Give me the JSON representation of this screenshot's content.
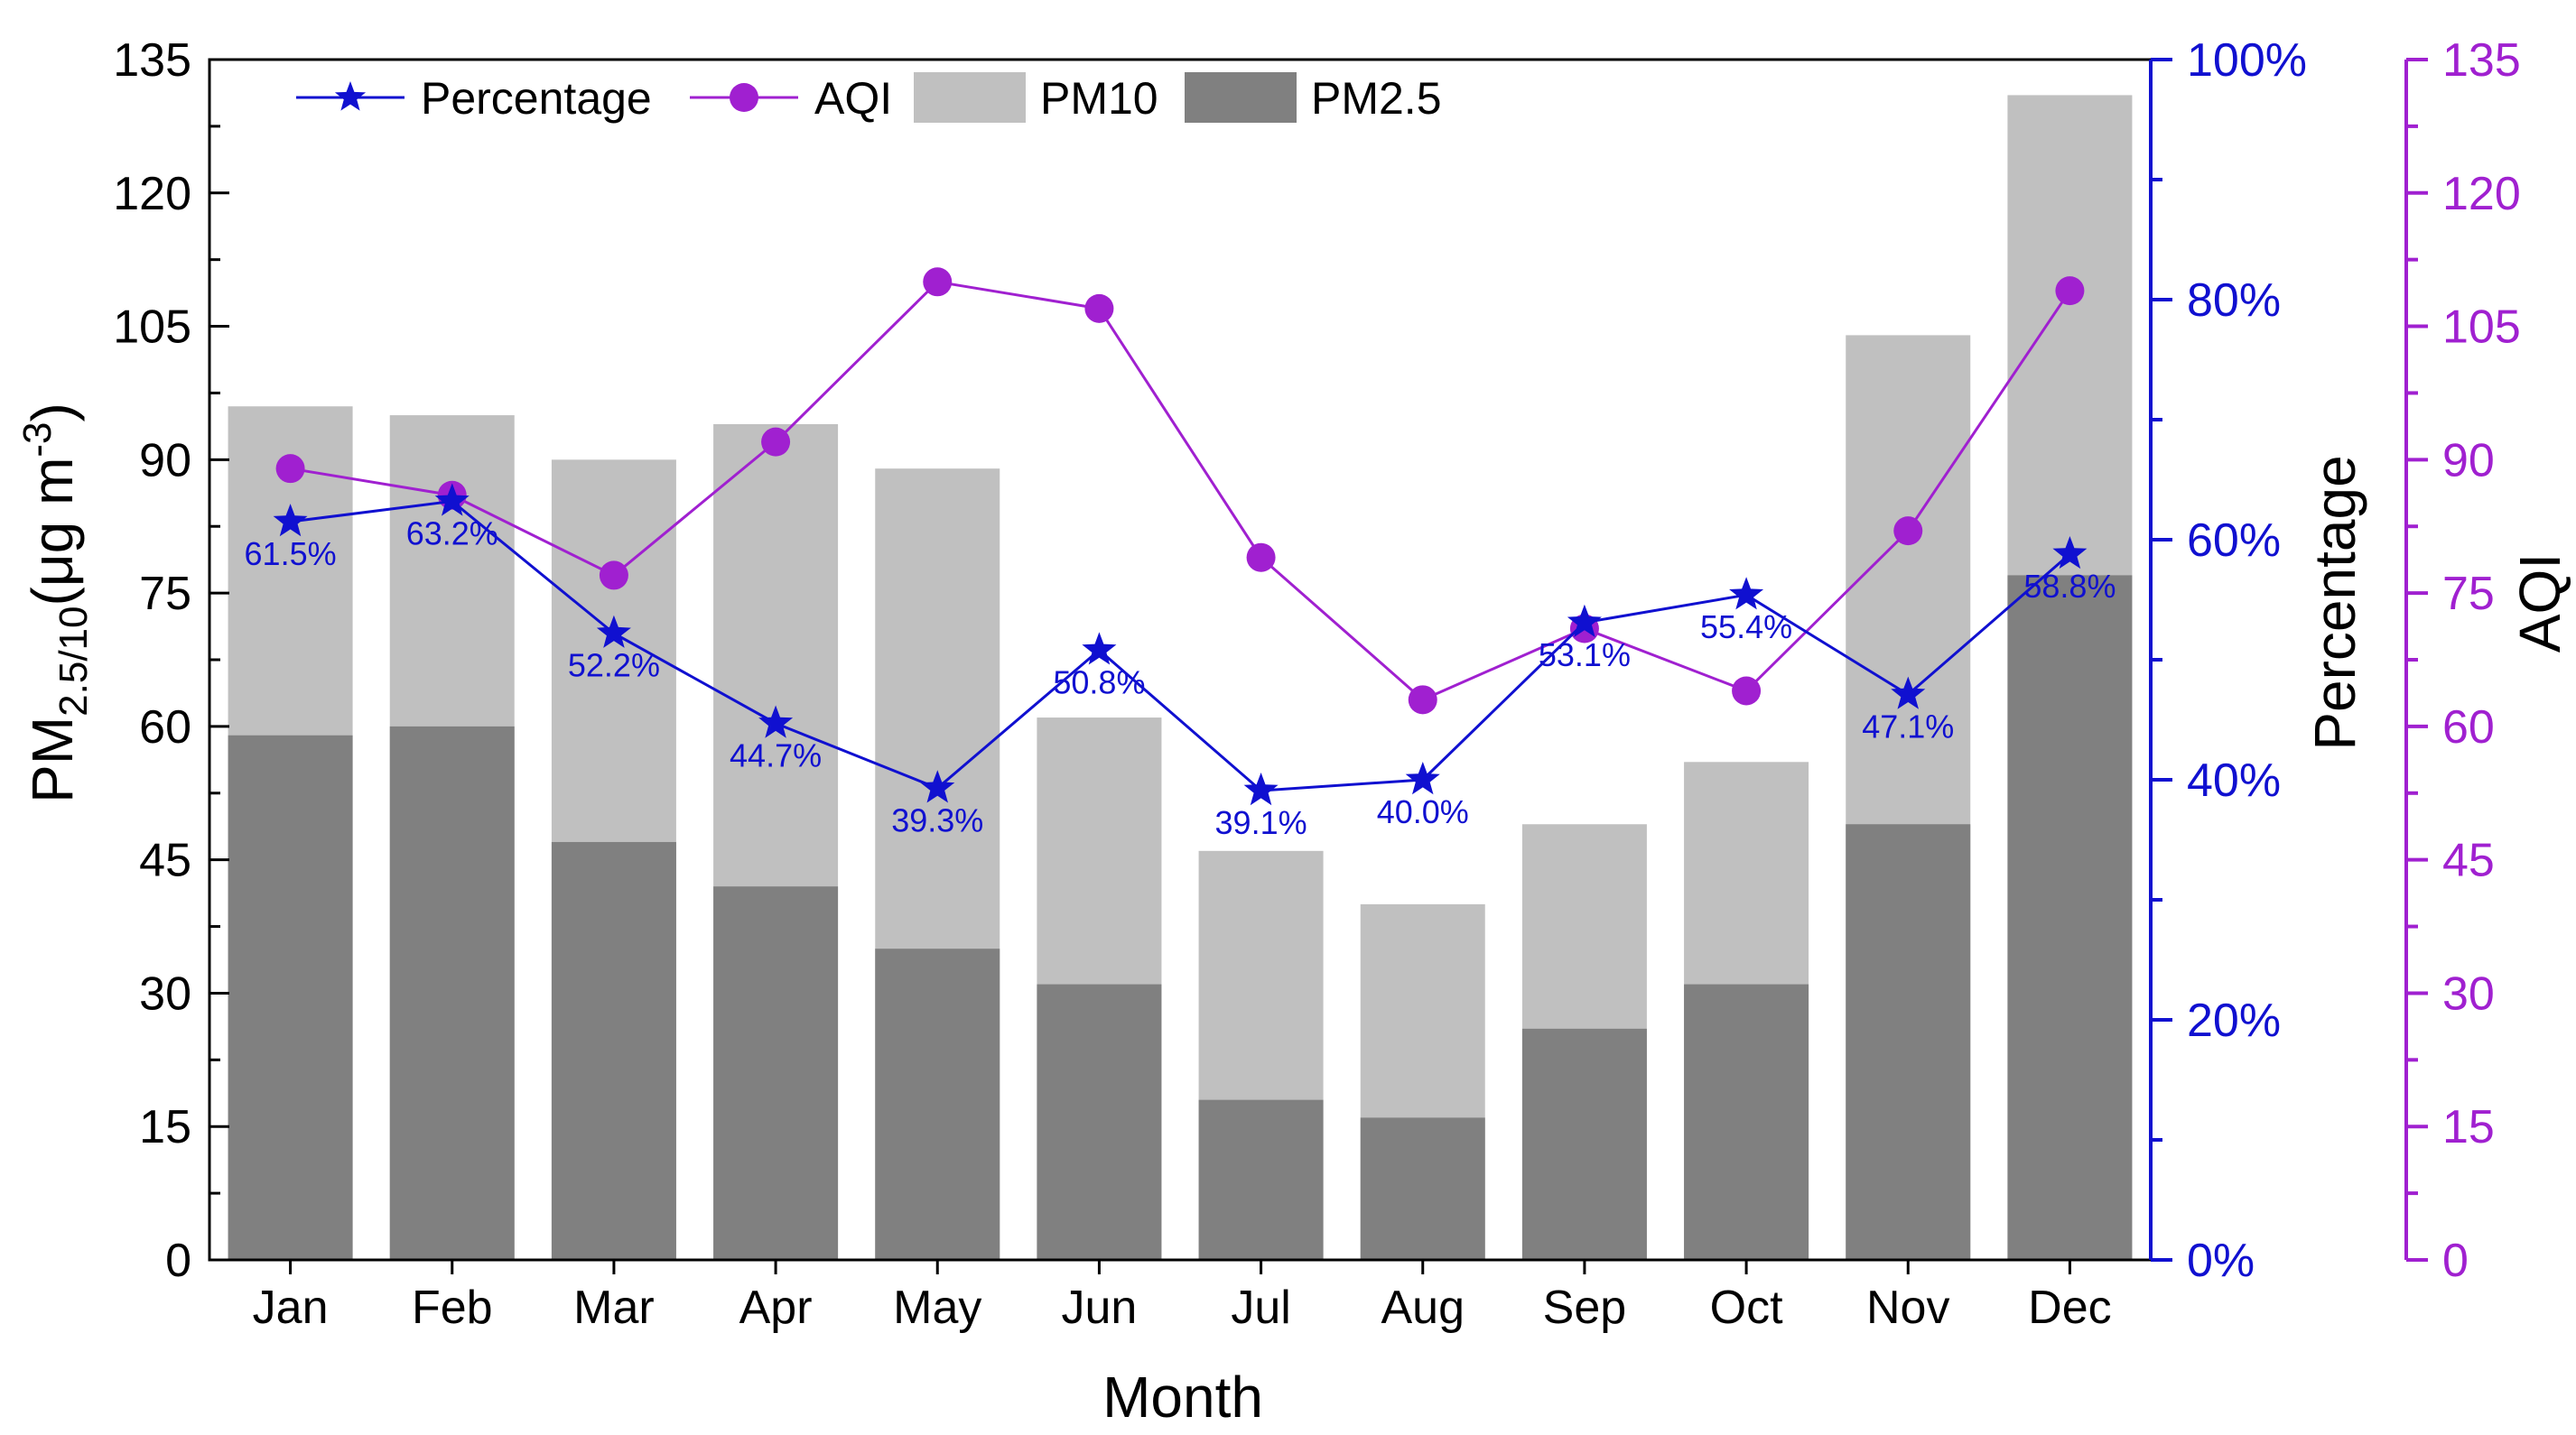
{
  "chart_data": {
    "type": "bar+line",
    "categories": [
      "Jan",
      "Feb",
      "Mar",
      "Apr",
      "May",
      "Jun",
      "Jul",
      "Aug",
      "Sep",
      "Oct",
      "Nov",
      "Dec"
    ],
    "series": [
      {
        "name": "PM10",
        "type": "bar",
        "axis": "left",
        "color": "#c0c0c0",
        "values": [
          96,
          95,
          90,
          94,
          89,
          61,
          46,
          40,
          49,
          56,
          104,
          131
        ]
      },
      {
        "name": "PM2.5",
        "type": "bar",
        "axis": "left",
        "color": "#808080",
        "values": [
          59,
          60,
          47,
          42,
          35,
          31,
          18,
          16,
          26,
          31,
          49,
          77
        ]
      },
      {
        "name": "Percentage",
        "type": "line",
        "axis": "percentage",
        "color": "#1010d0",
        "marker": "star",
        "values": [
          61.5,
          63.2,
          52.2,
          44.7,
          39.3,
          50.8,
          39.1,
          40.0,
          53.1,
          55.4,
          47.1,
          58.8
        ],
        "labels": [
          "61.5%",
          "63.2%",
          "52.2%",
          "44.7%",
          "39.3%",
          "50.8%",
          "39.1%",
          "40.0%",
          "53.1%",
          "55.4%",
          "47.1%",
          "58.8%"
        ]
      },
      {
        "name": "AQI",
        "type": "line",
        "axis": "aqi",
        "color": "#a020d0",
        "marker": "circle",
        "values": [
          89,
          86,
          77,
          92,
          110,
          107,
          79,
          63,
          71,
          64,
          82,
          109
        ]
      }
    ],
    "xlabel": "Month",
    "ylabel": {
      "main": "PM",
      "sub": "2.5/10",
      "unit": "(μg m",
      "exp": "-3",
      "close": ")"
    },
    "y2label": "Percentage",
    "y3label": "AQI",
    "ylim": [
      0,
      135
    ],
    "y2lim": [
      0,
      100
    ],
    "y3lim": [
      0,
      135
    ],
    "yticks": [
      "0",
      "15",
      "30",
      "45",
      "60",
      "75",
      "90",
      "105",
      "120",
      "135"
    ],
    "y2ticks": [
      "0%",
      "20%",
      "40%",
      "60%",
      "80%",
      "100%"
    ],
    "y3ticks": [
      "0",
      "15",
      "30",
      "45",
      "60",
      "75",
      "90",
      "105",
      "120",
      "135"
    ],
    "legend": {
      "position": "top-left",
      "items": [
        "Percentage",
        "AQI",
        "PM10",
        "PM2.5"
      ]
    },
    "colors": {
      "pm10": "#c0c0c0",
      "pm25": "#808080",
      "percentage": "#1010d0",
      "aqi": "#a020d0",
      "axis": "#000000"
    }
  }
}
